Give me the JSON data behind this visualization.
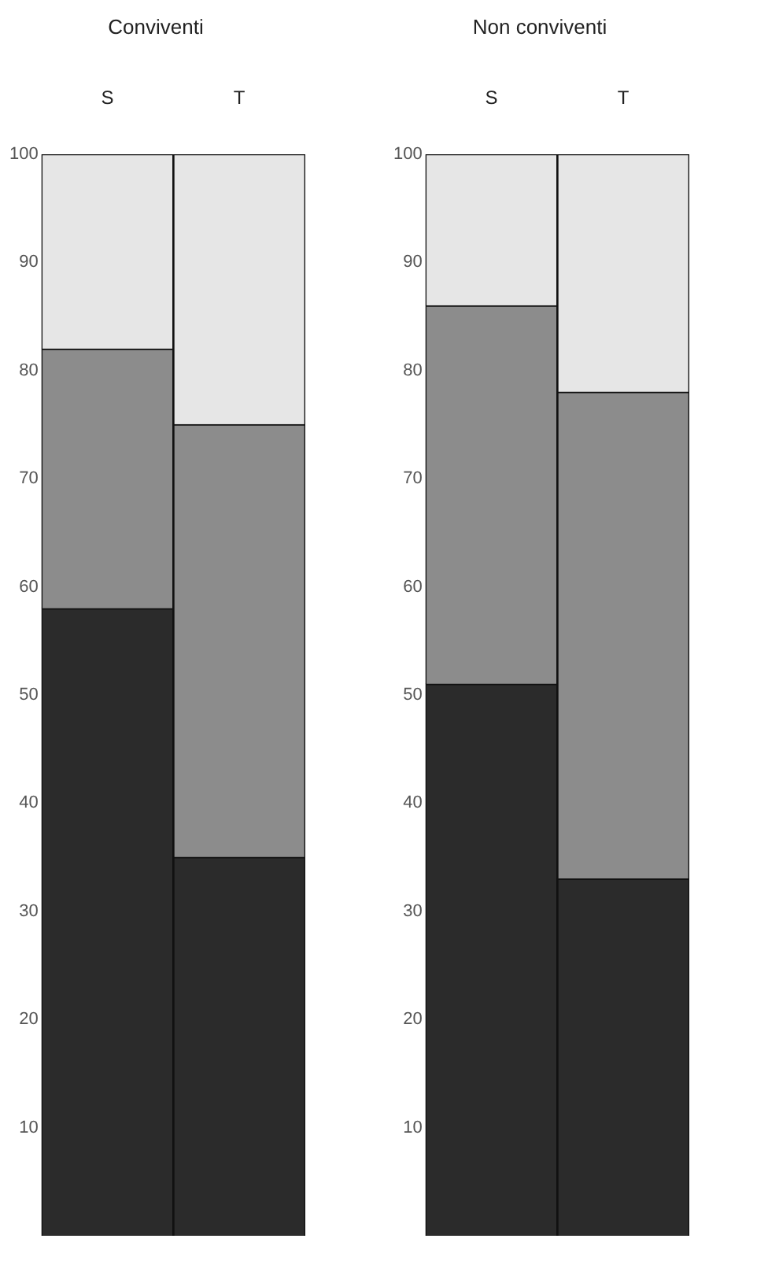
{
  "chart_data": [
    {
      "type": "bar",
      "title": "Conviventi",
      "categories": [
        "S",
        "T"
      ],
      "stacked": true,
      "ylim": [
        0,
        100
      ],
      "yticks": [
        10,
        20,
        30,
        40,
        50,
        60,
        70,
        80,
        90,
        100
      ],
      "grid": false,
      "legend": false,
      "series": [
        {
          "color": "#2b2b2b",
          "values": [
            58,
            35
          ]
        },
        {
          "color": "#8c8c8c",
          "values": [
            24,
            40
          ]
        },
        {
          "color": "#e6e6e6",
          "values": [
            18,
            25
          ]
        }
      ]
    },
    {
      "type": "bar",
      "title": "Non conviventi",
      "categories": [
        "S",
        "T"
      ],
      "stacked": true,
      "ylim": [
        0,
        100
      ],
      "yticks": [
        10,
        20,
        30,
        40,
        50,
        60,
        70,
        80,
        90,
        100
      ],
      "grid": false,
      "legend": false,
      "series": [
        {
          "color": "#2b2b2b",
          "values": [
            51,
            33
          ]
        },
        {
          "color": "#8c8c8c",
          "values": [
            35,
            45
          ]
        },
        {
          "color": "#e6e6e6",
          "values": [
            14,
            22
          ]
        }
      ]
    }
  ]
}
